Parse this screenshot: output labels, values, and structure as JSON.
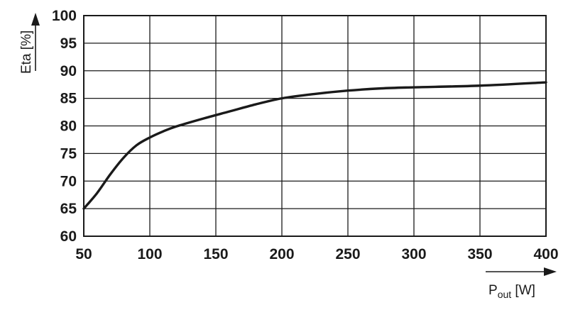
{
  "chart_data": {
    "type": "line",
    "ylabel": "Eta [%]",
    "xlabel": {
      "main": "P",
      "sub": "out",
      "unit": " [W]"
    },
    "xlim": [
      50,
      400
    ],
    "ylim": [
      60,
      100
    ],
    "xticks": [
      50,
      100,
      150,
      200,
      250,
      300,
      350,
      400
    ],
    "yticks": [
      60,
      65,
      70,
      75,
      80,
      85,
      90,
      95,
      100
    ],
    "grid": true,
    "series": [
      {
        "x": [
          50,
          60,
          70,
          80,
          90,
          100,
          110,
          120,
          140,
          160,
          180,
          200,
          225,
          250,
          275,
          300,
          350,
          400
        ],
        "values": [
          65,
          67.8,
          71.2,
          74.2,
          76.5,
          77.9,
          79.0,
          79.9,
          81.3,
          82.6,
          83.9,
          85.0,
          85.8,
          86.4,
          86.8,
          87.0,
          87.3,
          87.9
        ]
      }
    ]
  }
}
